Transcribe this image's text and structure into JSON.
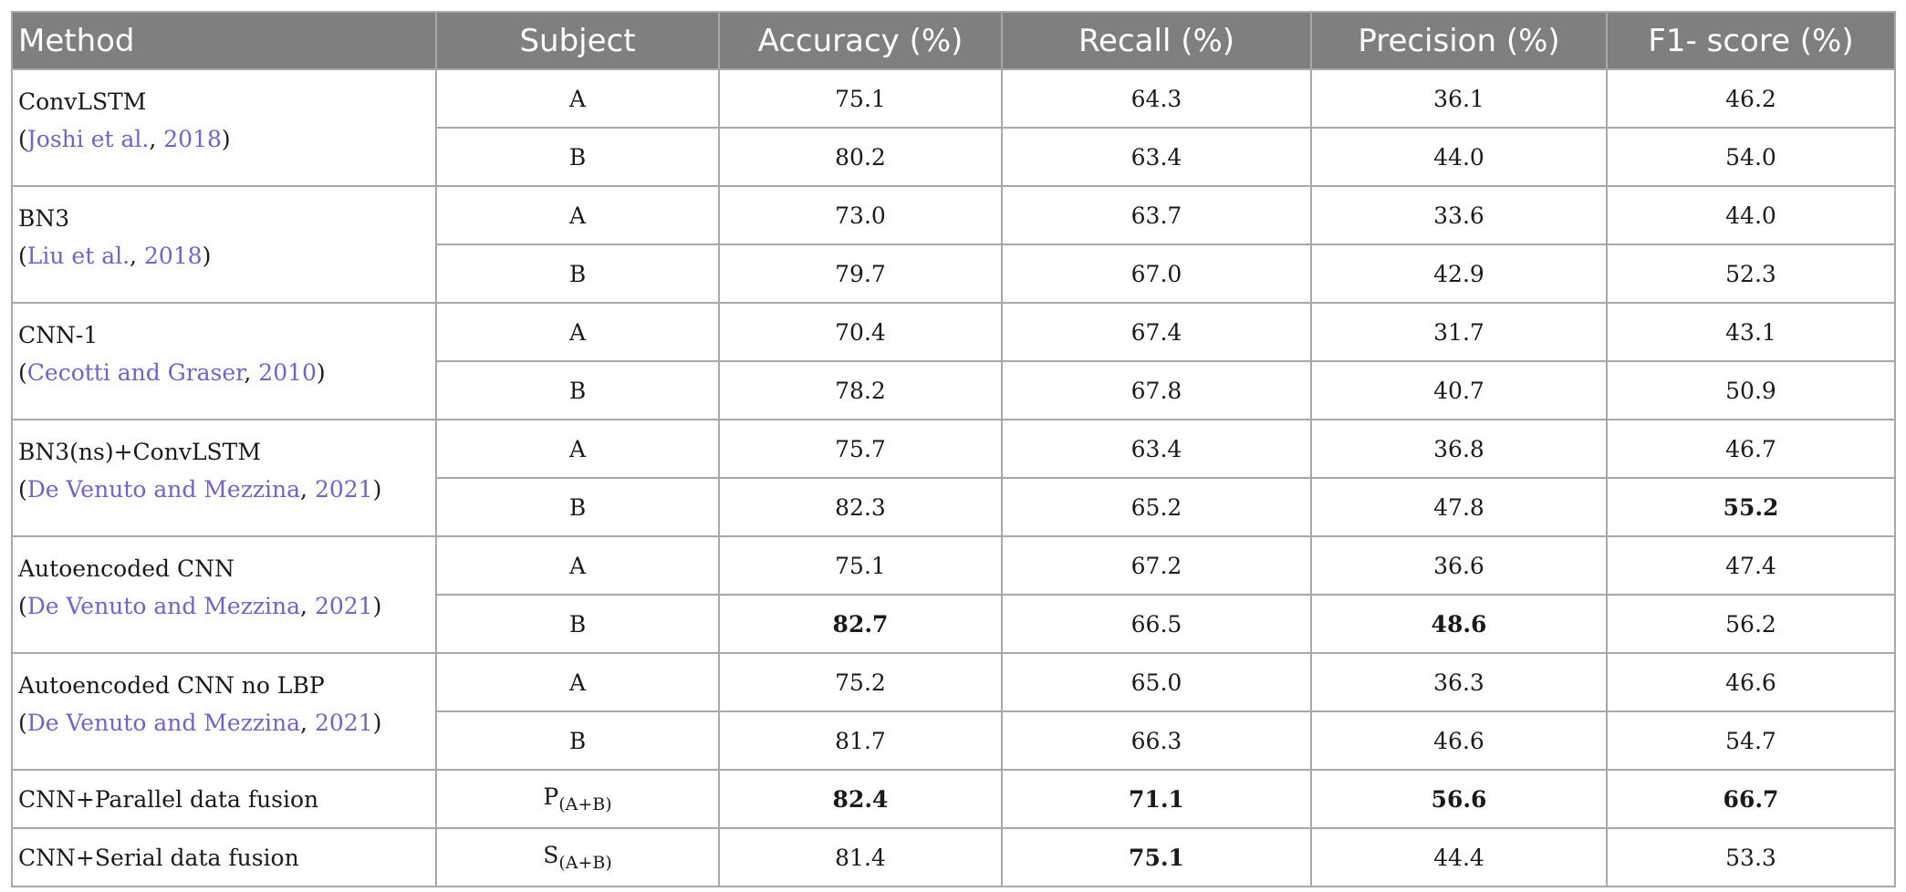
{
  "headers": [
    "Method",
    "Subject",
    "Accuracy (%)",
    "Recall (%)",
    "Precision (%)",
    "F1- score (%)"
  ],
  "groups": [
    {
      "method": "ConvLSTM",
      "cite_open": "(",
      "cite_authors": "Joshi et al.",
      "cite_sep": ", ",
      "cite_year": "2018",
      "cite_close": ")",
      "rows": [
        {
          "subject": "A",
          "accuracy": "75.1",
          "recall": "64.3",
          "precision": "36.1",
          "f1": "46.2"
        },
        {
          "subject": "B",
          "accuracy": "80.2",
          "recall": "63.4",
          "precision": "44.0",
          "f1": "54.0"
        }
      ]
    },
    {
      "method": "BN3",
      "cite_open": "(",
      "cite_authors": "Liu et al.",
      "cite_sep": ", ",
      "cite_year": "2018",
      "cite_close": ")",
      "rows": [
        {
          "subject": "A",
          "accuracy": "73.0",
          "recall": "63.7",
          "precision": "33.6",
          "f1": "44.0"
        },
        {
          "subject": "B",
          "accuracy": "79.7",
          "recall": "67.0",
          "precision": "42.9",
          "f1": "52.3"
        }
      ]
    },
    {
      "method": "CNN-1",
      "cite_open": "(",
      "cite_authors": "Cecotti and Graser",
      "cite_sep": ", ",
      "cite_year": "2010",
      "cite_close": ")",
      "rows": [
        {
          "subject": "A",
          "accuracy": "70.4",
          "recall": "67.4",
          "precision": "31.7",
          "f1": "43.1"
        },
        {
          "subject": "B",
          "accuracy": "78.2",
          "recall": "67.8",
          "precision": "40.7",
          "f1": "50.9"
        }
      ]
    },
    {
      "method": "BN3(ns)+ConvLSTM",
      "cite_open": "(",
      "cite_authors": "De Venuto and Mezzina",
      "cite_sep": ", ",
      "cite_year": "2021",
      "cite_close": ")",
      "rows": [
        {
          "subject": "A",
          "accuracy": "75.7",
          "recall": "63.4",
          "precision": "36.8",
          "f1": "46.7"
        },
        {
          "subject": "B",
          "accuracy": "82.3",
          "recall": "65.2",
          "precision": "47.8",
          "f1": "55.2"
        }
      ]
    },
    {
      "method": "Autoencoded CNN",
      "cite_open": "(",
      "cite_authors": "De Venuto and Mezzina",
      "cite_sep": ", ",
      "cite_year": "2021",
      "cite_close": ")",
      "rows": [
        {
          "subject": "A",
          "accuracy": "75.1",
          "recall": "67.2",
          "precision": "36.6",
          "f1": "47.4"
        },
        {
          "subject": "B",
          "accuracy": "82.7",
          "recall": "66.5",
          "precision": "48.6",
          "f1": "56.2"
        }
      ]
    },
    {
      "method": "Autoencoded CNN no LBP",
      "cite_open": "(",
      "cite_authors": "De Venuto and Mezzina",
      "cite_sep": ", ",
      "cite_year": "2021",
      "cite_close": ")",
      "rows": [
        {
          "subject": "A",
          "accuracy": "75.2",
          "recall": "65.0",
          "precision": "36.3",
          "f1": "46.6"
        },
        {
          "subject": "B",
          "accuracy": "81.7",
          "recall": "66.3",
          "precision": "46.6",
          "f1": "54.7"
        }
      ]
    }
  ],
  "fusion_rows": [
    {
      "method": "CNN+Parallel data fusion",
      "subject_main": "P",
      "subject_sub": "(A+B)",
      "accuracy": "82.4",
      "recall": "71.1",
      "precision": "56.6",
      "f1": "66.7"
    },
    {
      "method": "CNN+Serial data fusion",
      "subject_main": "S",
      "subject_sub": "(A+B)",
      "accuracy": "81.4",
      "recall": "75.1",
      "precision": "44.4",
      "f1": "53.3"
    }
  ]
}
